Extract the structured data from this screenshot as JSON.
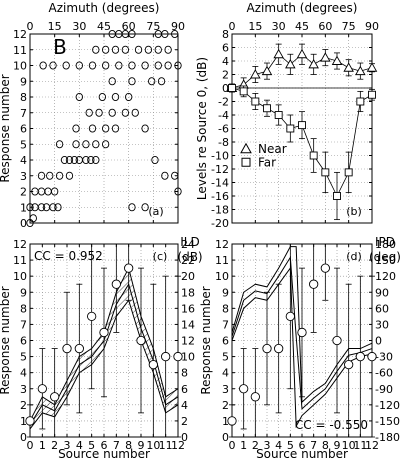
{
  "chart_data": [
    {
      "panel": "a",
      "type": "scatter",
      "panel_letter": "B",
      "panel_label": "(a)",
      "xlabel": "Azimuth (degrees)",
      "ylabel": "Response number",
      "xlim": [
        0,
        90
      ],
      "ylim": [
        0,
        12
      ],
      "xticks": [
        0,
        15,
        30,
        45,
        60,
        75,
        90
      ],
      "yticks": [
        0,
        1,
        2,
        3,
        4,
        5,
        6,
        7,
        8,
        9,
        10,
        11,
        12
      ],
      "grid": true,
      "marker": "circle",
      "points": [
        [
          0,
          0
        ],
        [
          0,
          1
        ],
        [
          2,
          0.3
        ],
        [
          3,
          1
        ],
        [
          7,
          1
        ],
        [
          10,
          1
        ],
        [
          14,
          1
        ],
        [
          17,
          1
        ],
        [
          3,
          2
        ],
        [
          7,
          2
        ],
        [
          11,
          2
        ],
        [
          15,
          2
        ],
        [
          7,
          3
        ],
        [
          12,
          3
        ],
        [
          18,
          3
        ],
        [
          24,
          3
        ],
        [
          18,
          5
        ],
        [
          21,
          4
        ],
        [
          24,
          4
        ],
        [
          27,
          4
        ],
        [
          30,
          4
        ],
        [
          34,
          4
        ],
        [
          37,
          4
        ],
        [
          40,
          4
        ],
        [
          28,
          5
        ],
        [
          34,
          5
        ],
        [
          40,
          5
        ],
        [
          46,
          5
        ],
        [
          28,
          6
        ],
        [
          38,
          6
        ],
        [
          46,
          6
        ],
        [
          52,
          6
        ],
        [
          36,
          7
        ],
        [
          42,
          7
        ],
        [
          50,
          7
        ],
        [
          58,
          7
        ],
        [
          30,
          8
        ],
        [
          44,
          8
        ],
        [
          52,
          8
        ],
        [
          60,
          8
        ],
        [
          50,
          9
        ],
        [
          62,
          9
        ],
        [
          74,
          9
        ],
        [
          80,
          9
        ],
        [
          8,
          10
        ],
        [
          14,
          10
        ],
        [
          22,
          10
        ],
        [
          30,
          10
        ],
        [
          38,
          10
        ],
        [
          46,
          10
        ],
        [
          54,
          10
        ],
        [
          62,
          10
        ],
        [
          70,
          10
        ],
        [
          78,
          10
        ],
        [
          84,
          10
        ],
        [
          90,
          10
        ],
        [
          40,
          11
        ],
        [
          46,
          11
        ],
        [
          52,
          11
        ],
        [
          58,
          11
        ],
        [
          66,
          11
        ],
        [
          72,
          11
        ],
        [
          78,
          11
        ],
        [
          84,
          11
        ],
        [
          50,
          12
        ],
        [
          54,
          12
        ],
        [
          58,
          12
        ],
        [
          62,
          12
        ],
        [
          78,
          12
        ],
        [
          82,
          12
        ],
        [
          88,
          12
        ],
        [
          64,
          7
        ],
        [
          70,
          6
        ],
        [
          76,
          4
        ],
        [
          82,
          3
        ],
        [
          88,
          3
        ],
        [
          90,
          2
        ],
        [
          62,
          1
        ],
        [
          70,
          1
        ]
      ]
    },
    {
      "panel": "b",
      "type": "line",
      "panel_label": "(b)",
      "xlabel": "Azimuth (degrees)",
      "ylabel": "Levels re Source 0, (dB)",
      "xlim": [
        0,
        90
      ],
      "ylim": [
        -20,
        8
      ],
      "xticks": [
        0,
        15,
        30,
        45,
        60,
        75,
        90
      ],
      "yticks": [
        8,
        6,
        4,
        2,
        0,
        -2,
        -4,
        -6,
        -8,
        -10,
        -12,
        -14,
        -16,
        -18,
        -20
      ],
      "grid": true,
      "legend_position": "left",
      "x": [
        0,
        7.5,
        15,
        22.5,
        30,
        37.5,
        45,
        52.5,
        60,
        67.5,
        75,
        82.5,
        90
      ],
      "series": [
        {
          "name": "Near",
          "marker": "triangle",
          "values": [
            0,
            0.5,
            2,
            2.5,
            5,
            3.5,
            5,
            3.5,
            4.5,
            4,
            3,
            2.5,
            3
          ],
          "err": [
            0.6,
            1,
            1.2,
            1.2,
            1.5,
            1.5,
            1.5,
            1.5,
            1.2,
            1.2,
            1.2,
            1.2,
            0.6
          ]
        },
        {
          "name": "Far",
          "marker": "square",
          "values": [
            0,
            -0.5,
            -2,
            -3,
            -4,
            -6,
            -5.5,
            -10,
            -12.5,
            -16,
            -12.5,
            -2,
            -1
          ],
          "err": [
            0.5,
            0.8,
            1.2,
            1.2,
            1.5,
            2,
            2,
            2.5,
            3,
            3.5,
            3,
            1.5,
            0.8
          ]
        }
      ]
    },
    {
      "panel": "c",
      "type": "line",
      "panel_label": "(c)",
      "annotation": "CC = 0.952",
      "xlabel": "Source number",
      "ylabel": "Response number",
      "y2label": "ILD (dB)",
      "xlim": [
        0,
        12
      ],
      "ylim": [
        0,
        12
      ],
      "y2lim": [
        0,
        24
      ],
      "xticks": [
        0,
        1,
        2,
        3,
        4,
        5,
        6,
        7,
        8,
        9,
        10,
        11,
        12
      ],
      "yticks": [
        0,
        1,
        2,
        3,
        4,
        5,
        6,
        7,
        8,
        9,
        10,
        11,
        12
      ],
      "y2ticks": [
        0,
        2,
        4,
        6,
        8,
        10,
        12,
        14,
        16,
        18,
        20,
        22,
        24
      ],
      "grid": true,
      "x": [
        0,
        1,
        2,
        3,
        4,
        5,
        6,
        7,
        8,
        9,
        10,
        11,
        12
      ],
      "response_mean": [
        1,
        3,
        2.5,
        5.5,
        5.5,
        7.5,
        6.5,
        9.5,
        10.5,
        6,
        4.5,
        5,
        5
      ],
      "response_err": [
        1,
        2.5,
        3,
        3.5,
        4,
        4.5,
        4,
        3,
        2,
        4.5,
        5,
        5,
        5
      ],
      "ild_band": {
        "x": [
          0,
          1,
          2,
          3,
          4,
          5,
          6,
          7,
          8,
          9,
          10,
          11,
          12
        ],
        "lower": [
          1,
          3,
          2.5,
          5,
          8,
          9,
          11,
          15,
          17,
          12,
          8,
          3,
          4
        ],
        "upper": [
          2,
          5,
          4,
          7,
          10,
          11,
          13,
          18,
          21,
          15,
          11,
          5,
          6
        ]
      }
    },
    {
      "panel": "d",
      "type": "line",
      "panel_label": "(d)",
      "annotation": "CC = -0.550",
      "xlabel": "Source number",
      "ylabel": "Response number",
      "y2label": "IPD (deg)",
      "xlim": [
        0,
        12
      ],
      "ylim": [
        0,
        12
      ],
      "y2lim": [
        -180,
        180
      ],
      "xticks": [
        0,
        1,
        2,
        3,
        4,
        5,
        6,
        7,
        8,
        9,
        10,
        11,
        12
      ],
      "yticks": [
        0,
        1,
        2,
        3,
        4,
        5,
        6,
        7,
        8,
        9,
        10,
        11,
        12
      ],
      "y2ticks": [
        180,
        150,
        120,
        90,
        60,
        30,
        0,
        -30,
        -60,
        -90,
        -120,
        -150,
        -180
      ],
      "grid": true,
      "x": [
        0,
        1,
        2,
        3,
        4,
        5,
        6,
        7,
        8,
        9,
        10,
        11,
        12
      ],
      "response_mean": [
        1,
        3,
        2.5,
        5.5,
        5.5,
        7.5,
        6.5,
        9.5,
        10.5,
        6,
        4.5,
        5,
        5
      ],
      "response_err": [
        1,
        2.5,
        3,
        3.5,
        4,
        4.5,
        4,
        3,
        2,
        4.5,
        5,
        5,
        5
      ],
      "ipd_band": {
        "x": [
          0,
          1,
          2,
          3,
          4,
          5,
          5.5,
          6,
          7,
          8,
          9,
          10,
          11,
          12
        ],
        "lower": [
          0,
          60,
          80,
          75,
          105,
          135,
          -160,
          -140,
          -120,
          -100,
          -70,
          -40,
          -30,
          -25
        ],
        "upper": [
          15,
          90,
          105,
          100,
          135,
          175,
          175,
          -115,
          -95,
          -80,
          -45,
          -15,
          -15,
          -5
        ]
      }
    }
  ]
}
